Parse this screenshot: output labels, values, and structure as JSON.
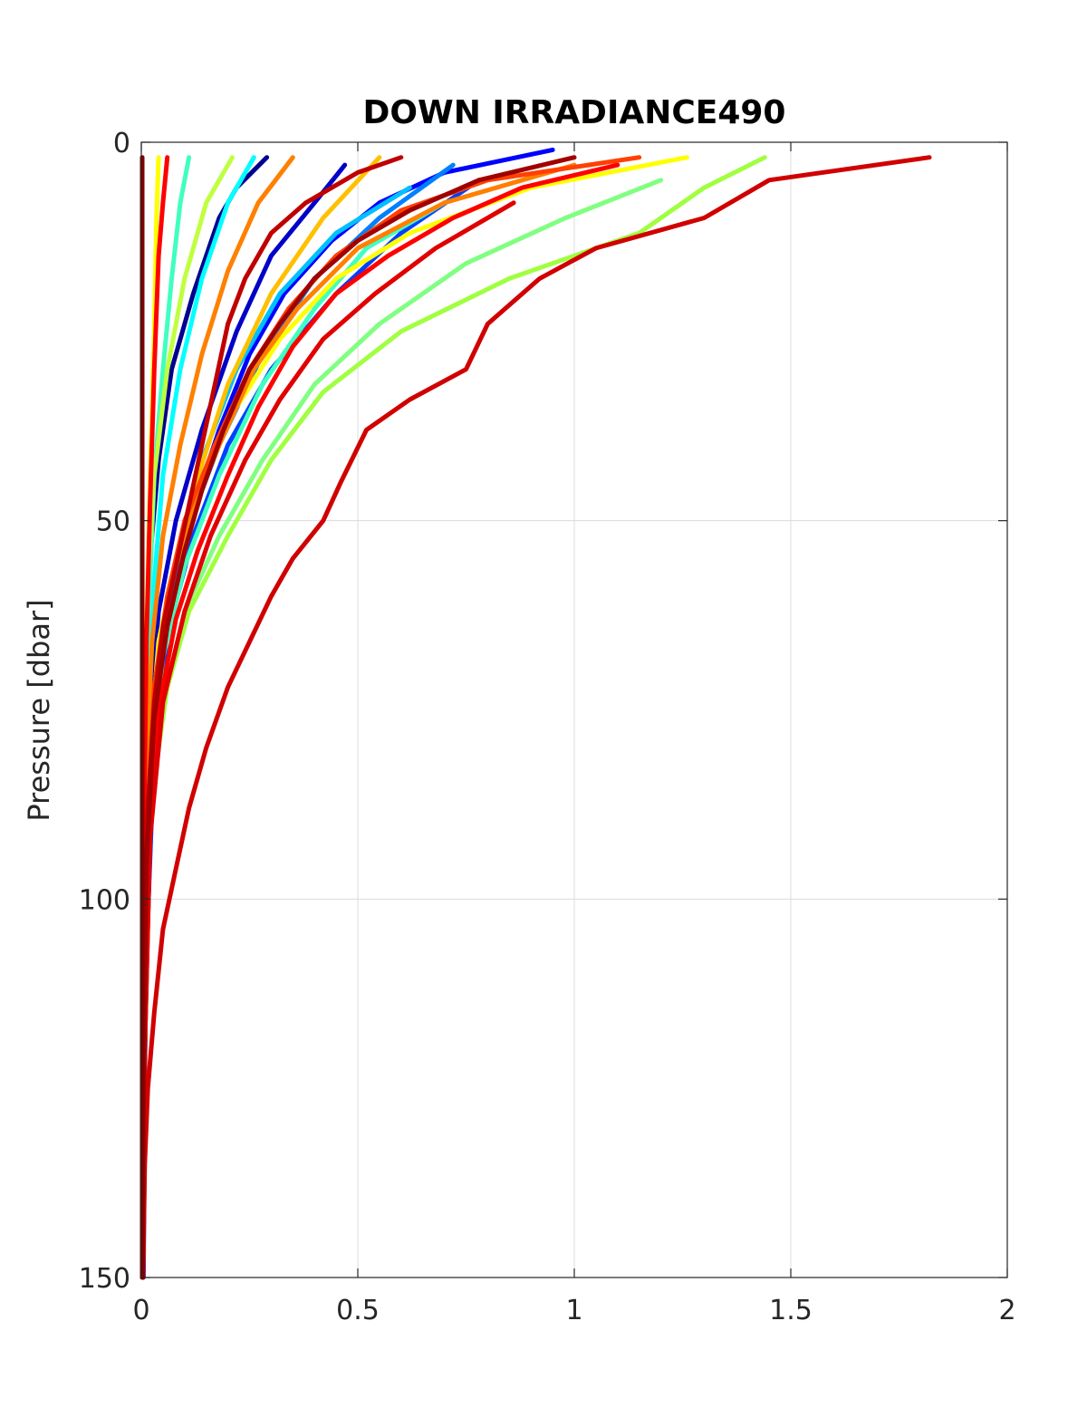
{
  "chart_data": {
    "type": "line",
    "title": "DOWN IRRADIANCE490",
    "xlabel": "",
    "ylabel": "Pressure [dbar]",
    "xlim": [
      0,
      2
    ],
    "ylim": [
      0,
      150
    ],
    "y_reversed": true,
    "grid": true,
    "xticks": [
      {
        "value": 0,
        "label": "0"
      },
      {
        "value": 0.5,
        "label": "0.5"
      },
      {
        "value": 1,
        "label": "1"
      },
      {
        "value": 1.5,
        "label": "1.5"
      },
      {
        "value": 2,
        "label": "2"
      }
    ],
    "yticks": [
      {
        "value": 0,
        "label": "0"
      },
      {
        "value": 50,
        "label": "50"
      },
      {
        "value": 100,
        "label": "100"
      },
      {
        "value": 150,
        "label": "150"
      }
    ],
    "series": [
      {
        "color": "#00008f",
        "points": [
          [
            0.29,
            2
          ],
          [
            0.22,
            6
          ],
          [
            0.18,
            10
          ],
          [
            0.12,
            20
          ],
          [
            0.07,
            30
          ],
          [
            0.04,
            42
          ],
          [
            0.02,
            55
          ],
          [
            0.01,
            70
          ],
          [
            0.005,
            90
          ],
          [
            0.003,
            120
          ],
          [
            0.002,
            150
          ]
        ]
      },
      {
        "color": "#0000c8",
        "points": [
          [
            0.47,
            3
          ],
          [
            0.4,
            8
          ],
          [
            0.3,
            15
          ],
          [
            0.22,
            25
          ],
          [
            0.14,
            38
          ],
          [
            0.08,
            50
          ],
          [
            0.04,
            62
          ],
          [
            0.02,
            75
          ],
          [
            0.01,
            95
          ],
          [
            0.005,
            130
          ],
          [
            0.003,
            150
          ]
        ]
      },
      {
        "color": "#0000ff",
        "points": [
          [
            0.95,
            1
          ],
          [
            0.7,
            4
          ],
          [
            0.55,
            8
          ],
          [
            0.44,
            13
          ],
          [
            0.33,
            20
          ],
          [
            0.25,
            28
          ],
          [
            0.18,
            38
          ],
          [
            0.11,
            50
          ],
          [
            0.07,
            60
          ],
          [
            0.03,
            78
          ],
          [
            0.01,
            110
          ],
          [
            0.004,
            150
          ]
        ]
      },
      {
        "color": "#0040ff",
        "points": [
          [
            0.78,
            5
          ],
          [
            0.6,
            12
          ],
          [
            0.45,
            20
          ],
          [
            0.3,
            30
          ],
          [
            0.2,
            40
          ],
          [
            0.12,
            52
          ],
          [
            0.06,
            65
          ],
          [
            0.03,
            80
          ],
          [
            0.01,
            110
          ],
          [
            0.005,
            150
          ]
        ]
      },
      {
        "color": "#0080ff",
        "points": [
          [
            0.72,
            3
          ],
          [
            0.55,
            10
          ],
          [
            0.4,
            18
          ],
          [
            0.28,
            28
          ],
          [
            0.18,
            40
          ],
          [
            0.1,
            52
          ],
          [
            0.05,
            66
          ],
          [
            0.02,
            82
          ],
          [
            0.008,
            110
          ],
          [
            0.004,
            150
          ]
        ]
      },
      {
        "color": "#00c0ff",
        "points": [
          [
            0.62,
            6
          ],
          [
            0.45,
            12
          ],
          [
            0.32,
            20
          ],
          [
            0.22,
            30
          ],
          [
            0.14,
            42
          ],
          [
            0.08,
            55
          ],
          [
            0.04,
            68
          ],
          [
            0.02,
            85
          ],
          [
            0.008,
            115
          ],
          [
            0.004,
            150
          ]
        ]
      },
      {
        "color": "#00ffff",
        "points": [
          [
            0.26,
            2
          ],
          [
            0.2,
            8
          ],
          [
            0.14,
            18
          ],
          [
            0.09,
            30
          ],
          [
            0.05,
            44
          ],
          [
            0.03,
            58
          ],
          [
            0.015,
            72
          ],
          [
            0.008,
            90
          ],
          [
            0.004,
            120
          ],
          [
            0.002,
            150
          ]
        ]
      },
      {
        "color": "#40ffc0",
        "points": [
          [
            0.11,
            2
          ],
          [
            0.09,
            8
          ],
          [
            0.07,
            18
          ],
          [
            0.05,
            30
          ],
          [
            0.03,
            44
          ],
          [
            0.02,
            58
          ],
          [
            0.01,
            72
          ],
          [
            0.005,
            95
          ],
          [
            0.003,
            150
          ]
        ]
      },
      {
        "color": "#40ffc0",
        "points": [
          [
            0.7,
            8
          ],
          [
            0.52,
            14
          ],
          [
            0.4,
            22
          ],
          [
            0.28,
            32
          ],
          [
            0.18,
            44
          ],
          [
            0.1,
            56
          ],
          [
            0.05,
            68
          ],
          [
            0.02,
            84
          ],
          [
            0.008,
            110
          ],
          [
            0.004,
            150
          ]
        ]
      },
      {
        "color": "#80ff80",
        "points": [
          [
            1.2,
            5
          ],
          [
            0.98,
            10
          ],
          [
            0.75,
            16
          ],
          [
            0.55,
            24
          ],
          [
            0.4,
            32
          ],
          [
            0.28,
            42
          ],
          [
            0.18,
            52
          ],
          [
            0.1,
            62
          ],
          [
            0.05,
            74
          ],
          [
            0.02,
            90
          ],
          [
            0.008,
            120
          ],
          [
            0.004,
            150
          ]
        ]
      },
      {
        "color": "#a0ff40",
        "points": [
          [
            1.44,
            2
          ],
          [
            1.3,
            6
          ],
          [
            1.15,
            12
          ],
          [
            0.85,
            18
          ],
          [
            0.6,
            25
          ],
          [
            0.42,
            33
          ],
          [
            0.3,
            42
          ],
          [
            0.2,
            52
          ],
          [
            0.11,
            62
          ],
          [
            0.06,
            72
          ],
          [
            0.02,
            88
          ],
          [
            0.008,
            120
          ],
          [
            0.004,
            150
          ]
        ]
      },
      {
        "color": "#c0ff40",
        "points": [
          [
            0.21,
            2
          ],
          [
            0.15,
            8
          ],
          [
            0.1,
            18
          ],
          [
            0.06,
            30
          ],
          [
            0.03,
            44
          ],
          [
            0.015,
            58
          ],
          [
            0.008,
            72
          ],
          [
            0.004,
            95
          ],
          [
            0.002,
            150
          ]
        ]
      },
      {
        "color": "#ffff00",
        "points": [
          [
            1.26,
            2
          ],
          [
            0.9,
            6
          ],
          [
            0.62,
            12
          ],
          [
            0.45,
            18
          ],
          [
            0.32,
            26
          ],
          [
            0.22,
            35
          ],
          [
            0.14,
            45
          ],
          [
            0.08,
            55
          ],
          [
            0.04,
            66
          ],
          [
            0.02,
            80
          ],
          [
            0.008,
            110
          ],
          [
            0.004,
            150
          ]
        ]
      },
      {
        "color": "#ffff00",
        "points": [
          [
            0.04,
            2
          ],
          [
            0.035,
            10
          ],
          [
            0.03,
            25
          ],
          [
            0.02,
            45
          ],
          [
            0.012,
            65
          ],
          [
            0.006,
            90
          ],
          [
            0.003,
            150
          ]
        ]
      },
      {
        "color": "#ffc000",
        "points": [
          [
            0.55,
            2
          ],
          [
            0.42,
            10
          ],
          [
            0.3,
            20
          ],
          [
            0.2,
            32
          ],
          [
            0.12,
            46
          ],
          [
            0.07,
            58
          ],
          [
            0.03,
            72
          ],
          [
            0.015,
            88
          ],
          [
            0.006,
            115
          ],
          [
            0.003,
            150
          ]
        ]
      },
      {
        "color": "#ff8000",
        "points": [
          [
            1.0,
            3
          ],
          [
            0.7,
            8
          ],
          [
            0.5,
            14
          ],
          [
            0.36,
            22
          ],
          [
            0.26,
            30
          ],
          [
            0.18,
            40
          ],
          [
            0.11,
            50
          ],
          [
            0.06,
            60
          ],
          [
            0.03,
            74
          ],
          [
            0.012,
            95
          ],
          [
            0.005,
            130
          ],
          [
            0.003,
            150
          ]
        ]
      },
      {
        "color": "#ff8000",
        "points": [
          [
            0.35,
            2
          ],
          [
            0.27,
            8
          ],
          [
            0.2,
            17
          ],
          [
            0.14,
            28
          ],
          [
            0.09,
            40
          ],
          [
            0.05,
            52
          ],
          [
            0.025,
            66
          ],
          [
            0.012,
            82
          ],
          [
            0.005,
            110
          ],
          [
            0.003,
            150
          ]
        ]
      },
      {
        "color": "#ff4000",
        "points": [
          [
            1.15,
            2
          ],
          [
            0.8,
            5
          ],
          [
            0.6,
            9
          ],
          [
            0.45,
            15
          ],
          [
            0.34,
            22
          ],
          [
            0.25,
            30
          ],
          [
            0.17,
            40
          ],
          [
            0.1,
            50
          ],
          [
            0.06,
            60
          ],
          [
            0.03,
            72
          ],
          [
            0.012,
            92
          ],
          [
            0.005,
            125
          ],
          [
            0.003,
            150
          ]
        ]
      },
      {
        "color": "#ff0000",
        "points": [
          [
            0.06,
            2
          ],
          [
            0.05,
            8
          ],
          [
            0.04,
            15
          ],
          [
            0.03,
            30
          ],
          [
            0.02,
            48
          ],
          [
            0.012,
            66
          ],
          [
            0.006,
            90
          ],
          [
            0.003,
            150
          ]
        ]
      },
      {
        "color": "#ff0000",
        "points": [
          [
            1.1,
            3
          ],
          [
            0.88,
            6
          ],
          [
            0.72,
            10
          ],
          [
            0.57,
            15
          ],
          [
            0.45,
            20
          ],
          [
            0.35,
            27
          ],
          [
            0.27,
            35
          ],
          [
            0.2,
            44
          ],
          [
            0.13,
            54
          ],
          [
            0.08,
            63
          ],
          [
            0.04,
            75
          ],
          [
            0.02,
            92
          ],
          [
            0.008,
            120
          ],
          [
            0.004,
            150
          ]
        ]
      },
      {
        "color": "#e00000",
        "points": [
          [
            0.86,
            8
          ],
          [
            0.68,
            14
          ],
          [
            0.54,
            20
          ],
          [
            0.42,
            26
          ],
          [
            0.32,
            34
          ],
          [
            0.24,
            42
          ],
          [
            0.16,
            52
          ],
          [
            0.1,
            62
          ],
          [
            0.05,
            74
          ],
          [
            0.02,
            92
          ],
          [
            0.008,
            120
          ],
          [
            0.004,
            150
          ]
        ]
      },
      {
        "color": "#d00000",
        "points": [
          [
            1.82,
            2
          ],
          [
            1.45,
            5
          ],
          [
            1.3,
            10
          ],
          [
            1.05,
            14
          ],
          [
            0.92,
            18
          ],
          [
            0.8,
            24
          ],
          [
            0.75,
            30
          ],
          [
            0.62,
            34
          ],
          [
            0.52,
            38
          ],
          [
            0.46,
            45
          ],
          [
            0.42,
            50
          ],
          [
            0.35,
            55
          ],
          [
            0.3,
            60
          ],
          [
            0.25,
            66
          ],
          [
            0.2,
            72
          ],
          [
            0.15,
            80
          ],
          [
            0.11,
            88
          ],
          [
            0.08,
            96
          ],
          [
            0.05,
            104
          ],
          [
            0.03,
            115
          ],
          [
            0.015,
            125
          ],
          [
            0.008,
            135
          ],
          [
            0.004,
            150
          ]
        ]
      },
      {
        "color": "#c00000",
        "points": [
          [
            0.6,
            2
          ],
          [
            0.5,
            4
          ],
          [
            0.38,
            8
          ],
          [
            0.3,
            12
          ],
          [
            0.24,
            18
          ],
          [
            0.2,
            24
          ],
          [
            0.17,
            32
          ],
          [
            0.14,
            40
          ],
          [
            0.11,
            48
          ],
          [
            0.08,
            56
          ],
          [
            0.05,
            64
          ],
          [
            0.03,
            74
          ],
          [
            0.015,
            88
          ],
          [
            0.006,
            110
          ],
          [
            0.003,
            150
          ]
        ]
      },
      {
        "color": "#a00000",
        "points": [
          [
            1.0,
            2
          ],
          [
            0.78,
            5
          ],
          [
            0.62,
            9
          ],
          [
            0.5,
            13
          ],
          [
            0.4,
            18
          ],
          [
            0.32,
            24
          ],
          [
            0.25,
            30
          ],
          [
            0.19,
            38
          ],
          [
            0.14,
            46
          ],
          [
            0.1,
            54
          ],
          [
            0.06,
            64
          ],
          [
            0.03,
            76
          ],
          [
            0.012,
            95
          ],
          [
            0.005,
            125
          ],
          [
            0.003,
            150
          ]
        ]
      },
      {
        "color": "#800000",
        "points": [
          [
            0.002,
            2
          ],
          [
            0.002,
            40
          ],
          [
            0.002,
            80
          ],
          [
            0.002,
            120
          ],
          [
            0.002,
            150
          ]
        ]
      }
    ]
  }
}
